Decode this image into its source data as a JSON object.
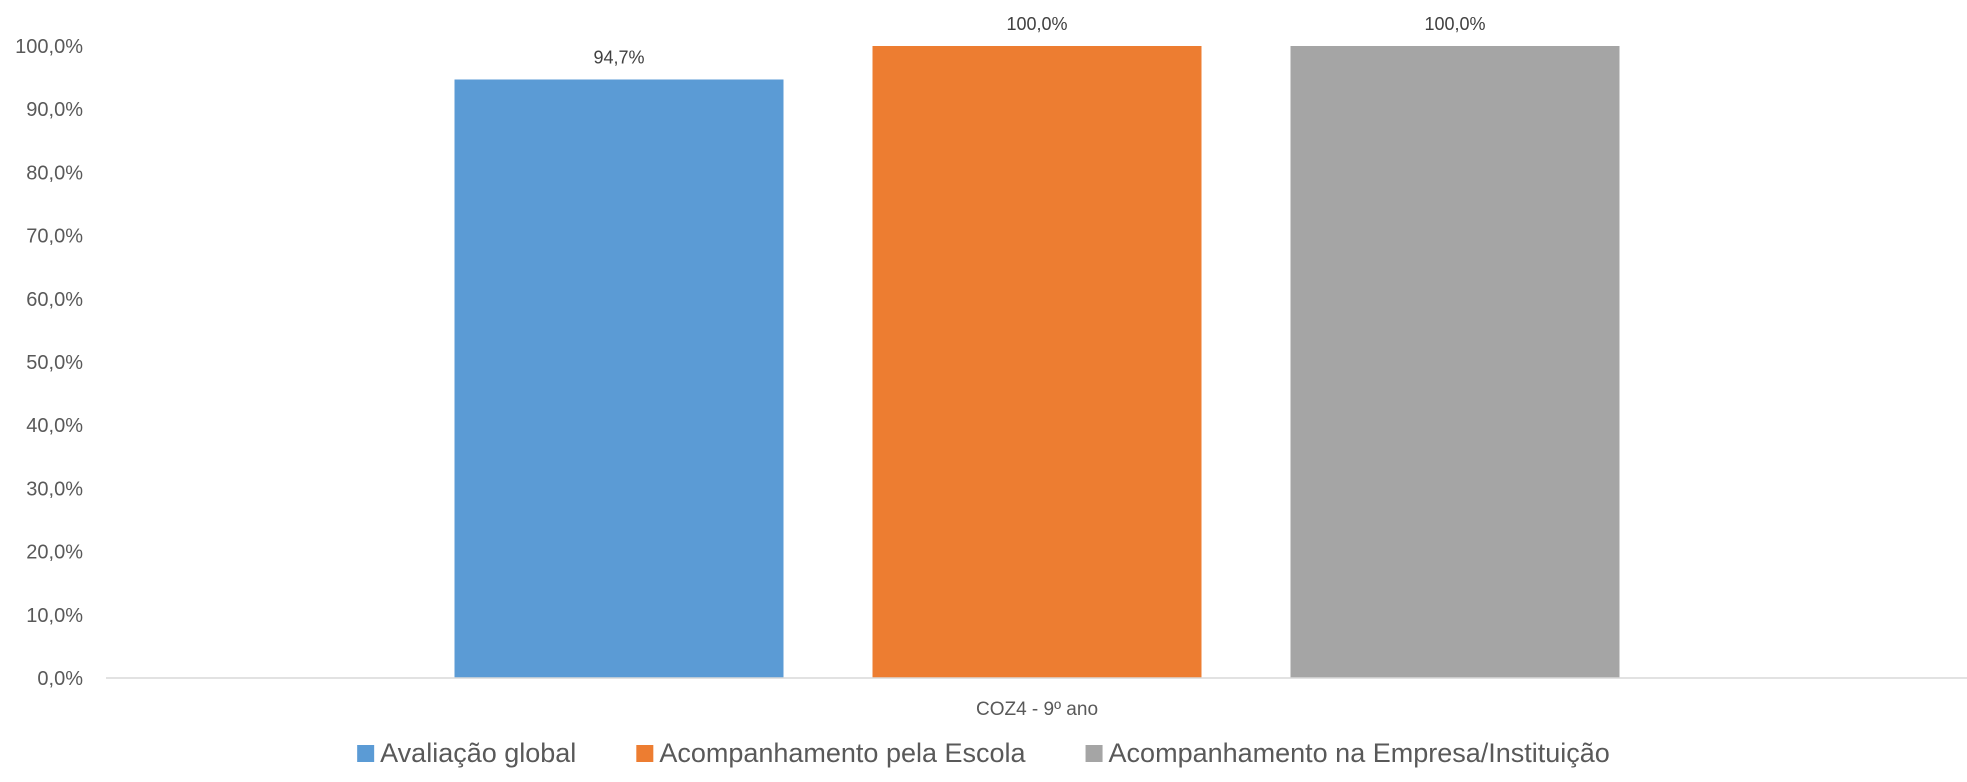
{
  "chart_data": {
    "type": "bar",
    "categories": [
      "COZ4 - 9º ano"
    ],
    "series": [
      {
        "name": "Avaliação global",
        "values": [
          94.7
        ],
        "color": "#5B9BD5",
        "label": "94,7%"
      },
      {
        "name": "Acompanhamento pela Escola",
        "values": [
          100.0
        ],
        "color": "#ED7D31",
        "label": "100,0%"
      },
      {
        "name": "Acompanhamento na Empresa/Instituição",
        "values": [
          100.0
        ],
        "color": "#A5A5A5",
        "label": "100,0%"
      }
    ],
    "y_ticks": [
      "0,0%",
      "10,0%",
      "20,0%",
      "30,0%",
      "40,0%",
      "50,0%",
      "60,0%",
      "70,0%",
      "80,0%",
      "90,0%",
      "100,0%"
    ],
    "y_tick_values": [
      0,
      10,
      20,
      30,
      40,
      50,
      60,
      70,
      80,
      90,
      100
    ],
    "ylim": [
      0,
      100
    ],
    "title": "",
    "xlabel": "",
    "ylabel": "",
    "grid": false,
    "legend_position": "bottom"
  }
}
